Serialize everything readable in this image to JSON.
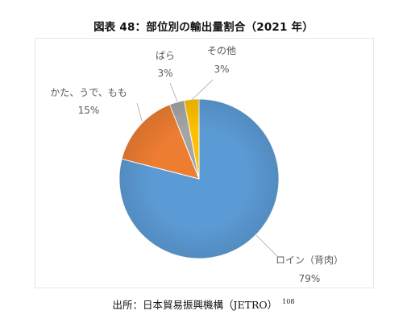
{
  "chart_data": {
    "type": "pie",
    "title": "図表 48：部位別の輸出量割合（2021 年）",
    "slices": [
      {
        "label": "ロイン（背肉）",
        "value": 79,
        "value_label": "79%",
        "color": "#5B9BD5"
      },
      {
        "label": "かた、うで、もも",
        "value": 15,
        "value_label": "15%",
        "color": "#ED7D31"
      },
      {
        "label": "ばら",
        "value": 3,
        "value_label": "3%",
        "color": "#A5A5A5"
      },
      {
        "label": "その他",
        "value": 3,
        "value_label": "3%",
        "color": "#FFC000"
      }
    ],
    "start": "12 o'clock",
    "direction": "clockwise",
    "legend": "none",
    "data_labels": "outside with leader lines"
  },
  "caption": {
    "text": "出所：日本貿易振興機構（JETRO）",
    "footnote_ref": "108"
  }
}
